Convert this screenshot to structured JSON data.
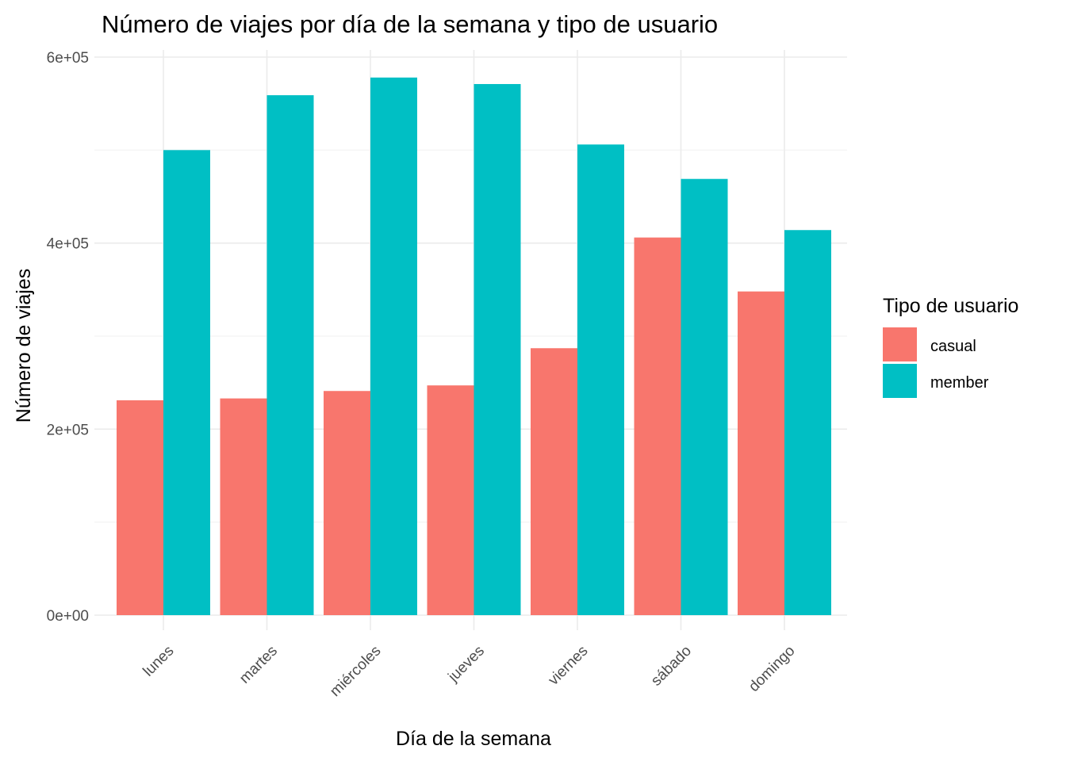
{
  "chart_data": {
    "type": "bar",
    "title": "Número de viajes por día de la semana y tipo de usuario",
    "xlabel": "Día de la semana",
    "ylabel": "Número de viajes",
    "categories": [
      "lunes",
      "martes",
      "miércoles",
      "jueves",
      "viernes",
      "sábado",
      "domingo"
    ],
    "series": [
      {
        "name": "casual",
        "color": "#F8766D",
        "values": [
          231000,
          233000,
          241000,
          247000,
          287000,
          406000,
          348000
        ]
      },
      {
        "name": "member",
        "color": "#00BFC4",
        "values": [
          500000,
          559000,
          578000,
          571000,
          506000,
          469000,
          414000
        ]
      }
    ],
    "ylim": [
      0,
      600000
    ],
    "yticks": [
      0,
      200000,
      400000,
      600000
    ],
    "ytick_labels": [
      "0e+00",
      "2e+05",
      "4e+05",
      "6e+05"
    ],
    "grid": true,
    "legend": {
      "title": "Tipo de usuario",
      "position": "right"
    }
  }
}
